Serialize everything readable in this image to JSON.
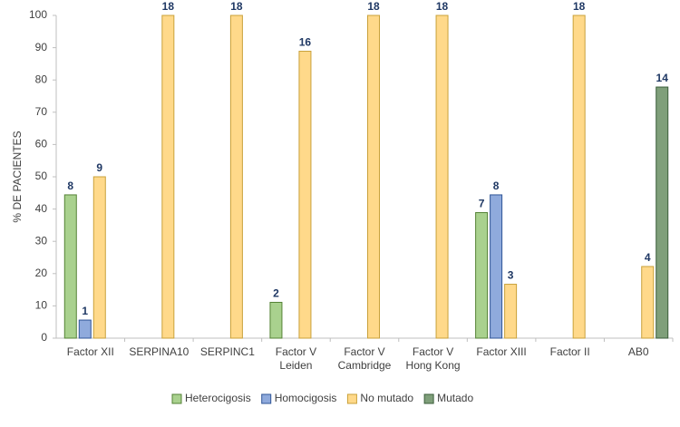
{
  "chart_data": {
    "type": "bar",
    "y_label": "% DE PACIENTES",
    "categories": [
      [
        "Factor XII"
      ],
      [
        "SERPINA10"
      ],
      [
        "SERPINC1"
      ],
      [
        "Factor V",
        "Leiden"
      ],
      [
        "Factor V",
        "Cambridge"
      ],
      [
        "Factor V",
        "Hong Kong"
      ],
      [
        "Factor XIII"
      ],
      [
        "Factor II"
      ],
      [
        "AB0"
      ]
    ],
    "series": [
      {
        "name": "Heterocigosis",
        "color": "#a9d18e",
        "edge": "#548235",
        "values": [
          44.4,
          null,
          null,
          11.1,
          null,
          null,
          38.9,
          null,
          null
        ],
        "value_labels": [
          "8",
          null,
          null,
          "2",
          null,
          null,
          "7",
          null,
          null
        ]
      },
      {
        "name": "Homocigosis",
        "color": "#8faadc",
        "edge": "#2f5597",
        "values": [
          5.6,
          null,
          null,
          null,
          null,
          null,
          44.4,
          null,
          null
        ],
        "value_labels": [
          "1",
          null,
          null,
          null,
          null,
          null,
          "8",
          null,
          null
        ]
      },
      {
        "name": "No mutado",
        "color": "#ffd98a",
        "edge": "#c9a13a",
        "values": [
          50,
          100,
          100,
          88.9,
          100,
          100,
          16.7,
          100,
          22.2
        ],
        "value_labels": [
          "9",
          "18",
          "18",
          "16",
          "18",
          "18",
          "3",
          "18",
          "4"
        ]
      },
      {
        "name": "Mutado",
        "color": "#7f9f7a",
        "edge": "#3b5e3b",
        "values": [
          null,
          null,
          null,
          null,
          null,
          null,
          null,
          null,
          77.8
        ],
        "value_labels": [
          null,
          null,
          null,
          null,
          null,
          null,
          null,
          null,
          "14"
        ]
      }
    ],
    "ylim": [
      0,
      100
    ],
    "yticks": [
      0,
      10,
      20,
      30,
      40,
      50,
      60,
      70,
      80,
      90,
      100
    ],
    "legend": "bottom"
  }
}
